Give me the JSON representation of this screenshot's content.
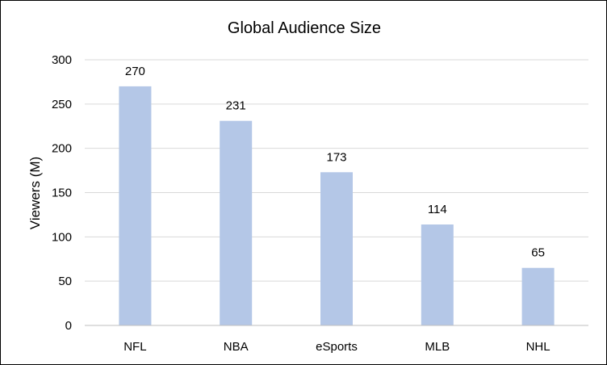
{
  "chart_data": {
    "type": "bar",
    "title": "Global Audience Size",
    "xlabel": "",
    "ylabel": "Viewers (M)",
    "categories": [
      "NFL",
      "NBA",
      "eSports",
      "MLB",
      "NHL"
    ],
    "values": [
      270,
      231,
      173,
      114,
      65
    ],
    "data_labels": [
      "270",
      "231",
      "173",
      "114",
      "65"
    ],
    "ylim": [
      0,
      300
    ],
    "yticks": [
      0,
      50,
      100,
      150,
      200,
      250,
      300
    ],
    "ytick_labels": [
      "0",
      "50",
      "100",
      "150",
      "200",
      "250",
      "300"
    ],
    "grid": true,
    "legend": "none",
    "colors": {
      "bar": "#b4c7e7",
      "grid": "#d9d9d9",
      "axis": "#bfbfbf",
      "text": "#000000"
    }
  }
}
